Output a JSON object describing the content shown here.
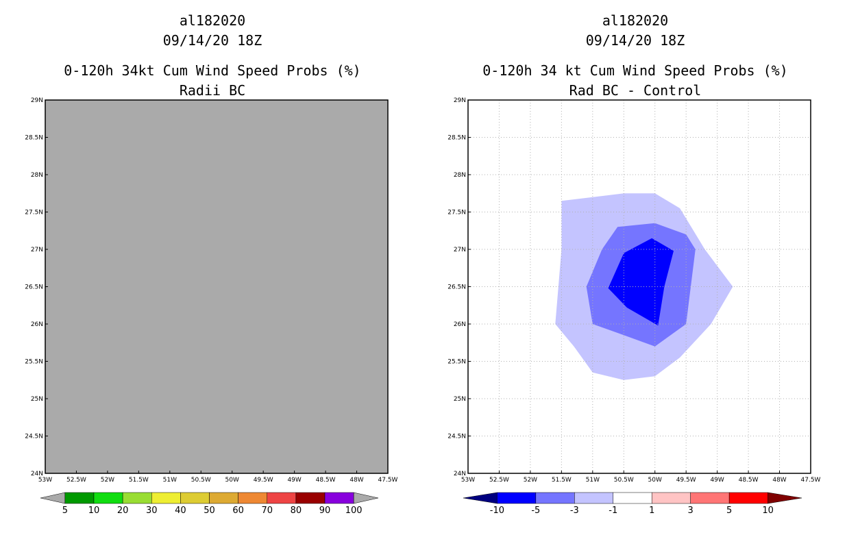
{
  "chart_data": [
    {
      "type": "heatmap",
      "title_lines": [
        "al182020",
        "09/14/20 18Z",
        "0-120h 34kt Cum Wind Speed Probs (%)",
        "Radii BC"
      ],
      "x_ticks": [
        "53W",
        "52.5W",
        "52W",
        "51.5W",
        "51W",
        "50.5W",
        "50W",
        "49.5W",
        "49W",
        "48.5W",
        "48W",
        "47.5W"
      ],
      "y_ticks": [
        "24N",
        "24.5N",
        "25N",
        "25.5N",
        "26N",
        "26.5N",
        "27N",
        "27.5N",
        "28N",
        "28.5N",
        "29N"
      ],
      "xlim": [
        -53,
        -47.5
      ],
      "ylim": [
        24,
        29
      ],
      "field": "uniform gray (no data)",
      "field_color": "#aaaaaa",
      "grid": false,
      "colorbar": {
        "labels": [
          "5",
          "10",
          "20",
          "30",
          "40",
          "50",
          "60",
          "70",
          "80",
          "90",
          "100"
        ],
        "colors": [
          "#aaaaaa",
          "#009900",
          "#11dd11",
          "#99dd33",
          "#eeee33",
          "#ddcc33",
          "#ddaa33",
          "#ee8833",
          "#ee4444",
          "#990000",
          "#8800dd",
          "#aaaaaa"
        ]
      }
    },
    {
      "type": "heatmap",
      "title_lines": [
        "al182020",
        "09/14/20 18Z",
        "0-120h 34 kt Cum Wind Speed Probs (%)",
        "Rad BC - Control"
      ],
      "x_ticks": [
        "53W",
        "52.5W",
        "52W",
        "51.5W",
        "51W",
        "50.5W",
        "50W",
        "49.5W",
        "49W",
        "48.5W",
        "48W",
        "47.5W"
      ],
      "y_ticks": [
        "24N",
        "24.5N",
        "25N",
        "25.5N",
        "26N",
        "26.5N",
        "27N",
        "27.5N",
        "28N",
        "28.5N",
        "29N"
      ],
      "xlim": [
        -53,
        -47.5
      ],
      "ylim": [
        24,
        29
      ],
      "grid": true,
      "contours": [
        {
          "level": "-1 to -3",
          "color": "#c4c4ff",
          "lon": [
            -51.5,
            -50.5,
            -50,
            -49.6,
            -49.2,
            -48.75,
            -49.1,
            -49.6,
            -50.0,
            -50.5,
            -51.0,
            -51.3,
            -51.6,
            -51.5
          ],
          "lat": [
            27.65,
            27.75,
            27.75,
            27.55,
            27.0,
            26.5,
            26.0,
            25.55,
            25.3,
            25.25,
            25.35,
            25.7,
            26.0,
            27.0
          ]
        },
        {
          "level": "-3 to -5",
          "color": "#7575ff",
          "lon": [
            -50.6,
            -50,
            -49.5,
            -49.35,
            -49.5,
            -50.0,
            -50.5,
            -51.0,
            -51.1,
            -50.85
          ],
          "lat": [
            27.3,
            27.35,
            27.2,
            27.0,
            26.0,
            25.7,
            25.85,
            26.0,
            26.5,
            27.0
          ]
        },
        {
          "level": "-5 to -10",
          "color": "#0000ff",
          "lon": [
            -50.5,
            -50.05,
            -49.7,
            -49.85,
            -49.95,
            -50.45,
            -50.75
          ],
          "lat": [
            26.95,
            27.15,
            26.98,
            26.5,
            25.98,
            26.22,
            26.48
          ]
        }
      ],
      "colorbar": {
        "labels": [
          "-10",
          "-5",
          "-3",
          "-1",
          "1",
          "3",
          "5",
          "10"
        ],
        "colors": [
          "#000080",
          "#0000ff",
          "#7575ff",
          "#c4c4ff",
          "#ffffff",
          "#ffc4c4",
          "#ff7575",
          "#ff0000",
          "#800000"
        ]
      }
    }
  ]
}
